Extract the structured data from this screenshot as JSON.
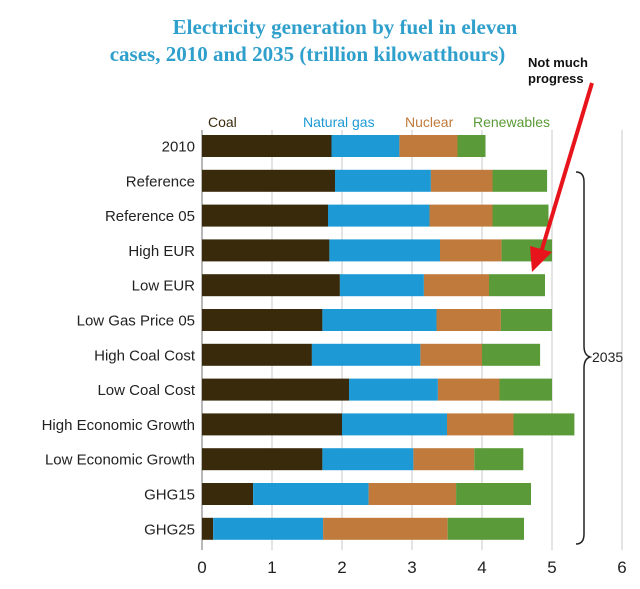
{
  "chart_data": {
    "type": "bar",
    "stacked": true,
    "orientation": "horizontal",
    "title_line1": "Electricity generation by fuel in eleven",
    "title_line2": "cases, 2010 and 2035 (trillion kilowatthours)",
    "categories": [
      "2010",
      "Reference",
      "Reference 05",
      "High EUR",
      "Low EUR",
      "Low Gas Price 05",
      "High Coal Cost",
      "Low Coal Cost",
      "High Economic Growth",
      "Low Economic Growth",
      "GHG15",
      "GHG25"
    ],
    "series": [
      {
        "name": "Coal",
        "color": "#3a2a0c",
        "values": [
          1.85,
          1.9,
          1.8,
          1.82,
          1.97,
          1.72,
          1.57,
          2.1,
          2.0,
          1.72,
          0.73,
          0.16
        ]
      },
      {
        "name": "Natural gas",
        "color": "#1d9ad6",
        "values": [
          0.97,
          1.37,
          1.45,
          1.58,
          1.2,
          1.63,
          1.55,
          1.27,
          1.5,
          1.3,
          1.65,
          1.57
        ]
      },
      {
        "name": "Nuclear",
        "color": "#c07a3c",
        "values": [
          0.83,
          0.88,
          0.9,
          0.88,
          0.93,
          0.92,
          0.88,
          0.88,
          0.95,
          0.87,
          1.25,
          1.78
        ]
      },
      {
        "name": "Renewables",
        "color": "#5a9a38",
        "values": [
          0.4,
          0.78,
          0.8,
          0.72,
          0.8,
          0.73,
          0.83,
          0.75,
          0.87,
          0.7,
          1.07,
          1.09
        ]
      }
    ],
    "xlim": [
      0,
      6
    ],
    "xticks": [
      0,
      1,
      2,
      3,
      4,
      5,
      6
    ],
    "grid": true,
    "legend_position": "top",
    "bracket_label": "2035",
    "annotation": "Not much progress"
  }
}
